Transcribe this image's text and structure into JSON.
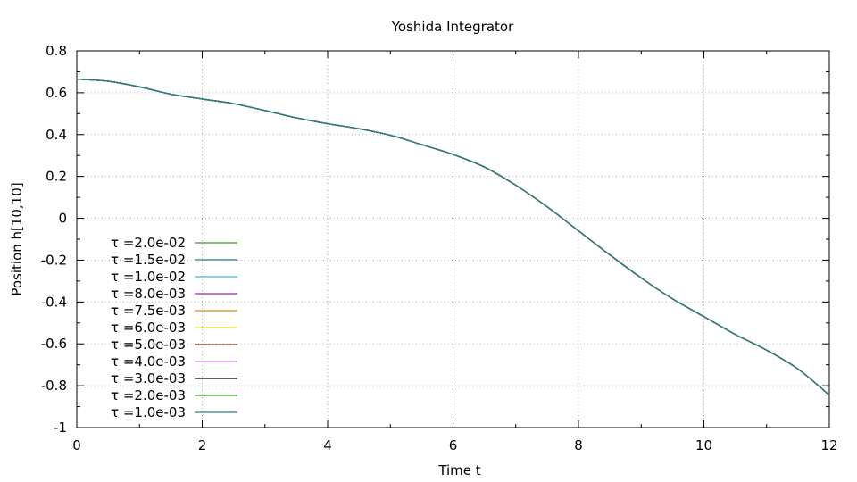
{
  "chart_data": {
    "type": "line",
    "title": "Yoshida Integrator",
    "xlabel": "Time t",
    "ylabel": "Position h[10,10]",
    "xlim": [
      0,
      12
    ],
    "ylim": [
      -1,
      0.8
    ],
    "xticks": [
      "0",
      "2",
      "4",
      "6",
      "8",
      "10",
      "12"
    ],
    "yticks": [
      "0.8",
      "0.6",
      "0.4",
      "0.2",
      "0",
      "-0.2",
      "-0.4",
      "-0.6",
      "-0.8",
      "-1"
    ],
    "grid": true,
    "legend_position": "bottom-left",
    "x": [
      0,
      0.5,
      1,
      1.5,
      2,
      2.5,
      3,
      3.5,
      4,
      4.5,
      5,
      5.5,
      6,
      6.5,
      7,
      7.5,
      8,
      8.5,
      9,
      9.5,
      10,
      10.5,
      11,
      11.5,
      12
    ],
    "series": [
      {
        "name": "τ =2.0e-02",
        "color": "#3a9a1f"
      },
      {
        "name": "τ =1.5e-02",
        "color": "#2c7a8c"
      },
      {
        "name": "τ =1.0e-02",
        "color": "#45b5d6"
      },
      {
        "name": "τ =8.0e-03",
        "color": "#9a2a9a"
      },
      {
        "name": "τ =7.5e-03",
        "color": "#e08a00"
      },
      {
        "name": "τ =6.0e-03",
        "color": "#f0e020"
      },
      {
        "name": "τ =5.0e-03",
        "color": "#8a3a1a"
      },
      {
        "name": "τ =4.0e-03",
        "color": "#d080e0"
      },
      {
        "name": "τ =3.0e-03",
        "color": "#000000"
      },
      {
        "name": "τ =2.0e-03",
        "color": "#3a9a1f"
      },
      {
        "name": "τ =1.0e-03",
        "color": "#2c7a8c"
      }
    ],
    "values": [
      0.665,
      0.655,
      0.628,
      0.593,
      0.57,
      0.548,
      0.515,
      0.48,
      0.452,
      0.428,
      0.397,
      0.352,
      0.305,
      0.245,
      0.158,
      0.055,
      -0.06,
      -0.175,
      -0.285,
      -0.385,
      -0.47,
      -0.555,
      -0.63,
      -0.72,
      -0.845
    ]
  }
}
